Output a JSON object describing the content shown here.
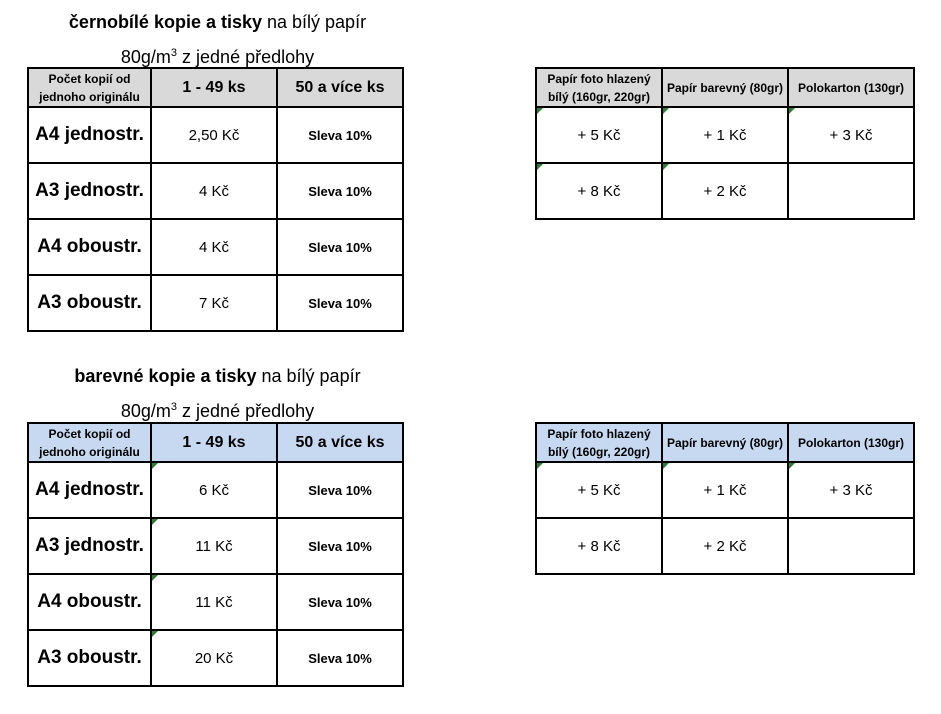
{
  "bw": {
    "title_bold": "černobílé kopie a tisky",
    "title_rest": " na bílý papír",
    "subtitle_pre": "80g/m",
    "subtitle_sup": "3",
    "subtitle_post": " z jedné předlohy",
    "header": {
      "col1": "Počet kopií od jednoho originálu",
      "col2": "1 - 49 ks",
      "col3": "50 a více ks"
    },
    "rows": [
      {
        "size": "A4 jednostr.",
        "price": "2,50 Kč",
        "discount": "Sleva 10%"
      },
      {
        "size": "A3 jednostr.",
        "price": "4 Kč",
        "discount": "Sleva 10%"
      },
      {
        "size": "A4 oboustr.",
        "price": "4 Kč",
        "discount": "Sleva 10%"
      },
      {
        "size": "A3 oboustr.",
        "price": "7 Kč",
        "discount": "Sleva 10%"
      }
    ],
    "paper": {
      "headers": [
        "Papír foto hlazený bílý (160gr, 220gr)",
        "Papír barevný (80gr)",
        "Polokarton (130gr)"
      ],
      "rows": [
        [
          "+ 5 Kč",
          "+ 1 Kč",
          "+ 3 Kč"
        ],
        [
          "+ 8 Kč",
          "+ 2 Kč",
          ""
        ]
      ]
    }
  },
  "color": {
    "title_bold": "barevné kopie a tisky",
    "title_rest": " na bílý papír",
    "subtitle_pre": "80g/m",
    "subtitle_sup": "3",
    "subtitle_post": " z jedné předlohy",
    "header": {
      "col1": "Počet kopií od jednoho originálu",
      "col2": "1 - 49 ks",
      "col3": "50 a více ks"
    },
    "rows": [
      {
        "size": "A4 jednostr.",
        "price": "6 Kč",
        "discount": "Sleva 10%"
      },
      {
        "size": "A3 jednostr.",
        "price": "11 Kč",
        "discount": "Sleva 10%"
      },
      {
        "size": "A4 oboustr.",
        "price": "11 Kč",
        "discount": "Sleva 10%"
      },
      {
        "size": "A3 oboustr.",
        "price": "20 Kč",
        "discount": "Sleva 10%"
      }
    ],
    "paper": {
      "headers": [
        "Papír foto hlazený bílý (160gr, 220gr)",
        "Papír barevný (80gr)",
        "Polokarton (130gr)"
      ],
      "rows": [
        [
          "+ 5 Kč",
          "+ 1 Kč",
          "+ 3 Kč"
        ],
        [
          "+ 8 Kč",
          "+ 2 Kč",
          ""
        ]
      ]
    }
  },
  "colors": {
    "bw_header_bg": "#d9d9d9",
    "color_header_bg": "#c6d9f1",
    "comment_marker": "#2e7d32"
  }
}
